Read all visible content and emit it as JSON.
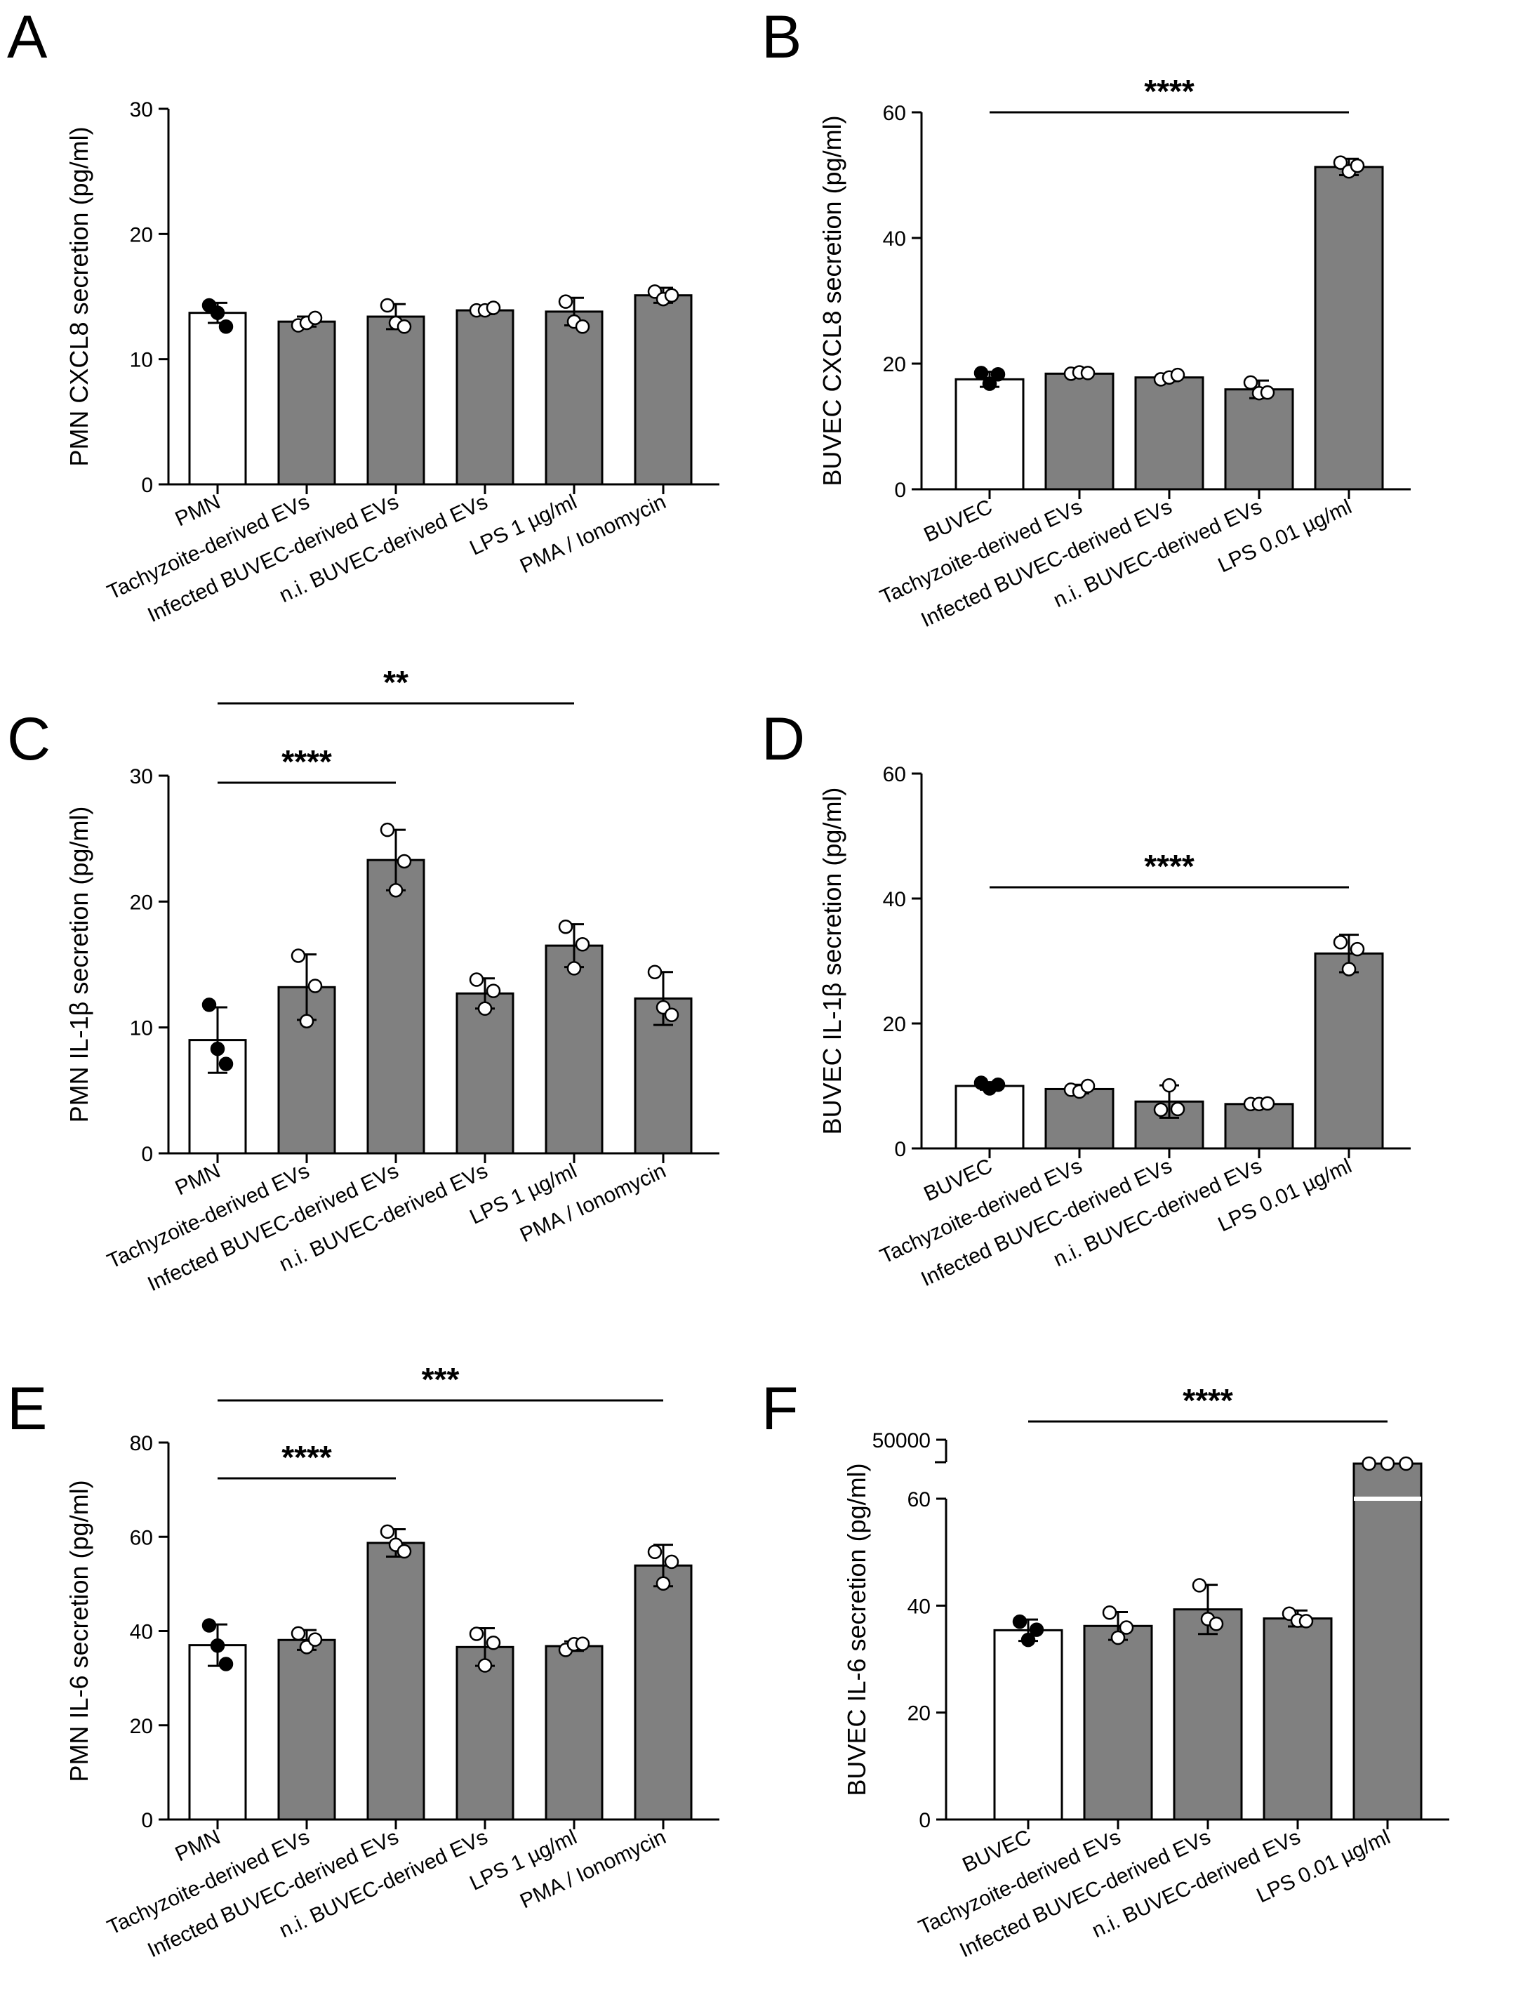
{
  "figure": {
    "colors": {
      "control_bar": "#ffffff",
      "treated_bar": "#808080",
      "outline": "#000000",
      "control_dot": "#000000",
      "treated_dot": "#ffffff"
    }
  },
  "chart_data": [
    {
      "panel": "A",
      "type": "bar",
      "ylabel": "PMN CXCL8 secretion (pg/ml)",
      "ylim": [
        0,
        30
      ],
      "yticks": [
        0,
        10,
        20,
        30
      ],
      "categories": [
        "PMN",
        "Tachyzoite-derived EVs",
        "Infected BUVEC-derived EVs",
        "n.i. BUVEC-derived EVs",
        "LPS 1 µg/ml",
        "PMA / Ionomycin"
      ],
      "values": [
        13.7,
        13.0,
        13.4,
        13.9,
        13.8,
        15.1
      ],
      "errors": [
        0.8,
        0.4,
        1.0,
        0.3,
        1.1,
        0.6
      ],
      "points": [
        [
          14.3,
          13.7,
          12.6
        ],
        [
          12.7,
          12.9,
          13.3
        ],
        [
          14.3,
          12.9,
          12.6
        ],
        [
          13.9,
          13.9,
          14.1
        ],
        [
          14.6,
          13.0,
          12.6
        ],
        [
          15.4,
          14.8,
          15.1
        ]
      ],
      "significance": []
    },
    {
      "panel": "B",
      "type": "bar",
      "ylabel": "BUVEC CXCL8 secretion (pg/ml)",
      "ylim": [
        0,
        60
      ],
      "yticks": [
        0,
        20,
        40,
        60
      ],
      "categories": [
        "BUVEC",
        "Tachyzoite-derived EVs",
        "Infected BUVEC-derived EVs",
        "n.i. BUVEC-derived EVs",
        "LPS 0.01 µg/ml"
      ],
      "values": [
        17.5,
        18.4,
        17.8,
        15.9,
        51.3
      ],
      "errors": [
        1.2,
        0.3,
        0.6,
        1.4,
        1.3
      ],
      "points": [
        [
          18.5,
          16.8,
          18.3
        ],
        [
          18.4,
          18.6,
          18.5
        ],
        [
          17.5,
          17.8,
          18.2
        ],
        [
          17.0,
          15.3,
          15.4
        ],
        [
          52.0,
          50.6,
          51.5
        ]
      ],
      "significance": [
        {
          "from": 0,
          "to": 4,
          "label": "****",
          "level": 0
        }
      ]
    },
    {
      "panel": "C",
      "type": "bar",
      "ylabel": "PMN IL-1β secretion (pg/ml)",
      "ylim": [
        0,
        30
      ],
      "yticks": [
        0,
        10,
        20,
        30
      ],
      "categories": [
        "PMN",
        "Tachyzoite-derived EVs",
        "Infected BUVEC-derived EVs",
        "n.i. BUVEC-derived EVs",
        "LPS 1 µg/ml",
        "PMA / Ionomycin"
      ],
      "values": [
        9.0,
        13.2,
        23.3,
        12.7,
        16.5,
        12.3
      ],
      "errors": [
        2.6,
        2.6,
        2.4,
        1.2,
        1.7,
        2.1
      ],
      "points": [
        [
          11.8,
          8.3,
          7.1
        ],
        [
          15.7,
          10.5,
          13.3
        ],
        [
          25.7,
          20.9,
          23.2
        ],
        [
          13.8,
          11.5,
          12.9
        ],
        [
          18.0,
          14.7,
          16.6
        ],
        [
          14.4,
          11.6,
          11.0
        ]
      ],
      "significance": [
        {
          "from": 0,
          "to": 2,
          "label": "****",
          "level": 0
        },
        {
          "from": 0,
          "to": 4,
          "label": "**",
          "level": 1
        }
      ]
    },
    {
      "panel": "D",
      "type": "bar",
      "ylabel": "BUVEC IL-1β secretion (pg/ml)",
      "ylim": [
        0,
        60
      ],
      "yticks": [
        0,
        20,
        40,
        60
      ],
      "categories": [
        "BUVEC",
        "Tachyzoite-derived EVs",
        "Infected BUVEC-derived EVs",
        "n.i. BUVEC-derived EVs",
        "LPS 0.01 µg/ml"
      ],
      "values": [
        10.0,
        9.5,
        7.5,
        7.1,
        31.2
      ],
      "errors": [
        0.6,
        0.7,
        2.6,
        0.3,
        3.0
      ],
      "points": [
        [
          10.5,
          9.6,
          10.2
        ],
        [
          9.4,
          9.1,
          10.0
        ],
        [
          6.2,
          10.1,
          6.3
        ],
        [
          7.1,
          7.1,
          7.2
        ],
        [
          33.0,
          28.7,
          31.9
        ]
      ],
      "significance": [
        {
          "from": 0,
          "to": 4,
          "label": "****",
          "level": 0
        }
      ]
    },
    {
      "panel": "E",
      "type": "bar",
      "ylabel": "PMN IL-6 secretion (pg/ml)",
      "ylim": [
        0,
        80
      ],
      "yticks": [
        0,
        20,
        40,
        60,
        80
      ],
      "categories": [
        "PMN",
        "Tachyzoite-derived EVs",
        "Infected BUVEC-derived EVs",
        "n.i. BUVEC-derived EVs",
        "LPS 1 µg/ml",
        "PMA / Ionomycin"
      ],
      "values": [
        37.0,
        38.1,
        58.7,
        36.6,
        36.8,
        53.9
      ],
      "errors": [
        4.4,
        2.1,
        2.9,
        4.0,
        1.0,
        4.4
      ],
      "points": [
        [
          41.2,
          36.9,
          33.0
        ],
        [
          39.5,
          36.6,
          38.2
        ],
        [
          61.1,
          58.3,
          56.9
        ],
        [
          39.4,
          32.7,
          37.5
        ],
        [
          36.0,
          37.2,
          37.3
        ],
        [
          56.8,
          50.1,
          54.7
        ]
      ],
      "significance": [
        {
          "from": 0,
          "to": 2,
          "label": "****",
          "level": 0
        },
        {
          "from": 0,
          "to": 5,
          "label": "***",
          "level": 1
        }
      ]
    },
    {
      "panel": "F",
      "type": "bar",
      "ylabel": "BUVEC IL-6 secretion (pg/ml)",
      "ylim": [
        0,
        60
      ],
      "yticks": [
        0,
        20,
        40,
        60
      ],
      "axis_break": {
        "at": 60,
        "upper_tick": 50000
      },
      "categories": [
        "BUVEC",
        "Tachyzoite-derived EVs",
        "Infected BUVEC-derived EVs",
        "n.i. BUVEC-derived EVs",
        "LPS 0.01 µg/ml"
      ],
      "values": [
        35.4,
        36.2,
        39.3,
        37.6,
        50000
      ],
      "errors": [
        2.0,
        2.6,
        4.6,
        1.5,
        0
      ],
      "points": [
        [
          37.0,
          33.6,
          35.5
        ],
        [
          38.7,
          34.0,
          35.9
        ],
        [
          43.8,
          37.5,
          36.6
        ],
        [
          38.5,
          37.2,
          37.1
        ],
        [
          50000,
          50000,
          50000
        ]
      ],
      "significance": [
        {
          "from": 0,
          "to": 4,
          "label": "****",
          "level": 0
        }
      ]
    }
  ]
}
